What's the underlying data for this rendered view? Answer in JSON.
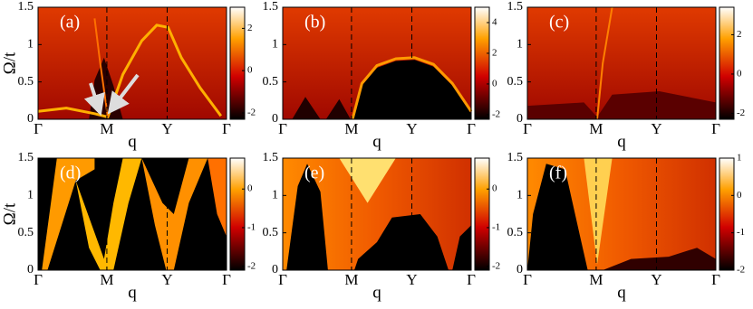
{
  "chart_data": [
    {
      "type": "heatmap",
      "panel_label": "(a)",
      "xlabel": "q",
      "ylabel": "Ω/t",
      "xlim": [
        0,
        1
      ],
      "xticks": [
        {
          "value": 0,
          "label": "Γ"
        },
        {
          "value": 0.365,
          "label": "M"
        },
        {
          "value": 0.685,
          "label": "Y"
        },
        {
          "value": 1,
          "label": "Γ"
        }
      ],
      "ylim": [
        0,
        1.5
      ],
      "yticks": [
        0,
        0.5,
        1,
        1.5
      ],
      "clim": [
        -2.3,
        3.0
      ],
      "cticks": [
        -2,
        0,
        2
      ]
    },
    {
      "type": "heatmap",
      "panel_label": "(b)",
      "xlabel": "q",
      "xlim": [
        0,
        1
      ],
      "xticks": [
        {
          "value": 0,
          "label": "Γ"
        },
        {
          "value": 0.365,
          "label": "M"
        },
        {
          "value": 0.685,
          "label": "Y"
        },
        {
          "value": 1,
          "label": "Γ"
        }
      ],
      "ylim": [
        0,
        1.5
      ],
      "yticks": [
        0,
        0.5,
        1,
        1.5
      ],
      "clim": [
        -2.3,
        5.0
      ],
      "cticks": [
        -2,
        0,
        2,
        4
      ]
    },
    {
      "type": "heatmap",
      "panel_label": "(c)",
      "xlabel": "q",
      "xlim": [
        0,
        1
      ],
      "xticks": [
        {
          "value": 0,
          "label": "Γ"
        },
        {
          "value": 0.365,
          "label": "M"
        },
        {
          "value": 0.685,
          "label": "Y"
        },
        {
          "value": 1,
          "label": "Γ"
        }
      ],
      "ylim": [
        0,
        1.5
      ],
      "yticks": [
        0,
        0.5,
        1,
        1.5
      ],
      "clim": [
        -2.3,
        3.4
      ],
      "cticks": [
        -2,
        0,
        2
      ]
    },
    {
      "type": "heatmap",
      "panel_label": "(d)",
      "xlabel": "q",
      "ylabel": "Ω/t",
      "xlim": [
        0,
        1
      ],
      "xticks": [
        {
          "value": 0,
          "label": "Γ"
        },
        {
          "value": 0.365,
          "label": "M"
        },
        {
          "value": 0.685,
          "label": "Y"
        },
        {
          "value": 1,
          "label": "Γ"
        }
      ],
      "ylim": [
        0,
        1.5
      ],
      "yticks": [
        0,
        0.5,
        1,
        1.5
      ],
      "clim": [
        -2.1,
        0.8
      ],
      "cticks": [
        -2,
        -1,
        0
      ]
    },
    {
      "type": "heatmap",
      "panel_label": "(e)",
      "xlabel": "q",
      "xlim": [
        0,
        1
      ],
      "xticks": [
        {
          "value": 0,
          "label": "Γ"
        },
        {
          "value": 0.365,
          "label": "M"
        },
        {
          "value": 0.685,
          "label": "Y"
        },
        {
          "value": 1,
          "label": "Γ"
        }
      ],
      "ylim": [
        0,
        1.5
      ],
      "yticks": [
        0,
        0.5,
        1,
        1.5
      ],
      "clim": [
        -2.1,
        0.8
      ],
      "cticks": [
        -2,
        -1,
        0
      ]
    },
    {
      "type": "heatmap",
      "panel_label": "(f)",
      "xlabel": "q",
      "xlim": [
        0,
        1
      ],
      "xticks": [
        {
          "value": 0,
          "label": "Γ"
        },
        {
          "value": 0.365,
          "label": "M"
        },
        {
          "value": 0.685,
          "label": "Y"
        },
        {
          "value": 1,
          "label": "Γ"
        }
      ],
      "ylim": [
        0,
        1.5
      ],
      "yticks": [
        0,
        0.5,
        1,
        1.5
      ],
      "clim": [
        -2.0,
        1.0
      ],
      "cticks": [
        -2,
        -1,
        0,
        1
      ]
    }
  ]
}
